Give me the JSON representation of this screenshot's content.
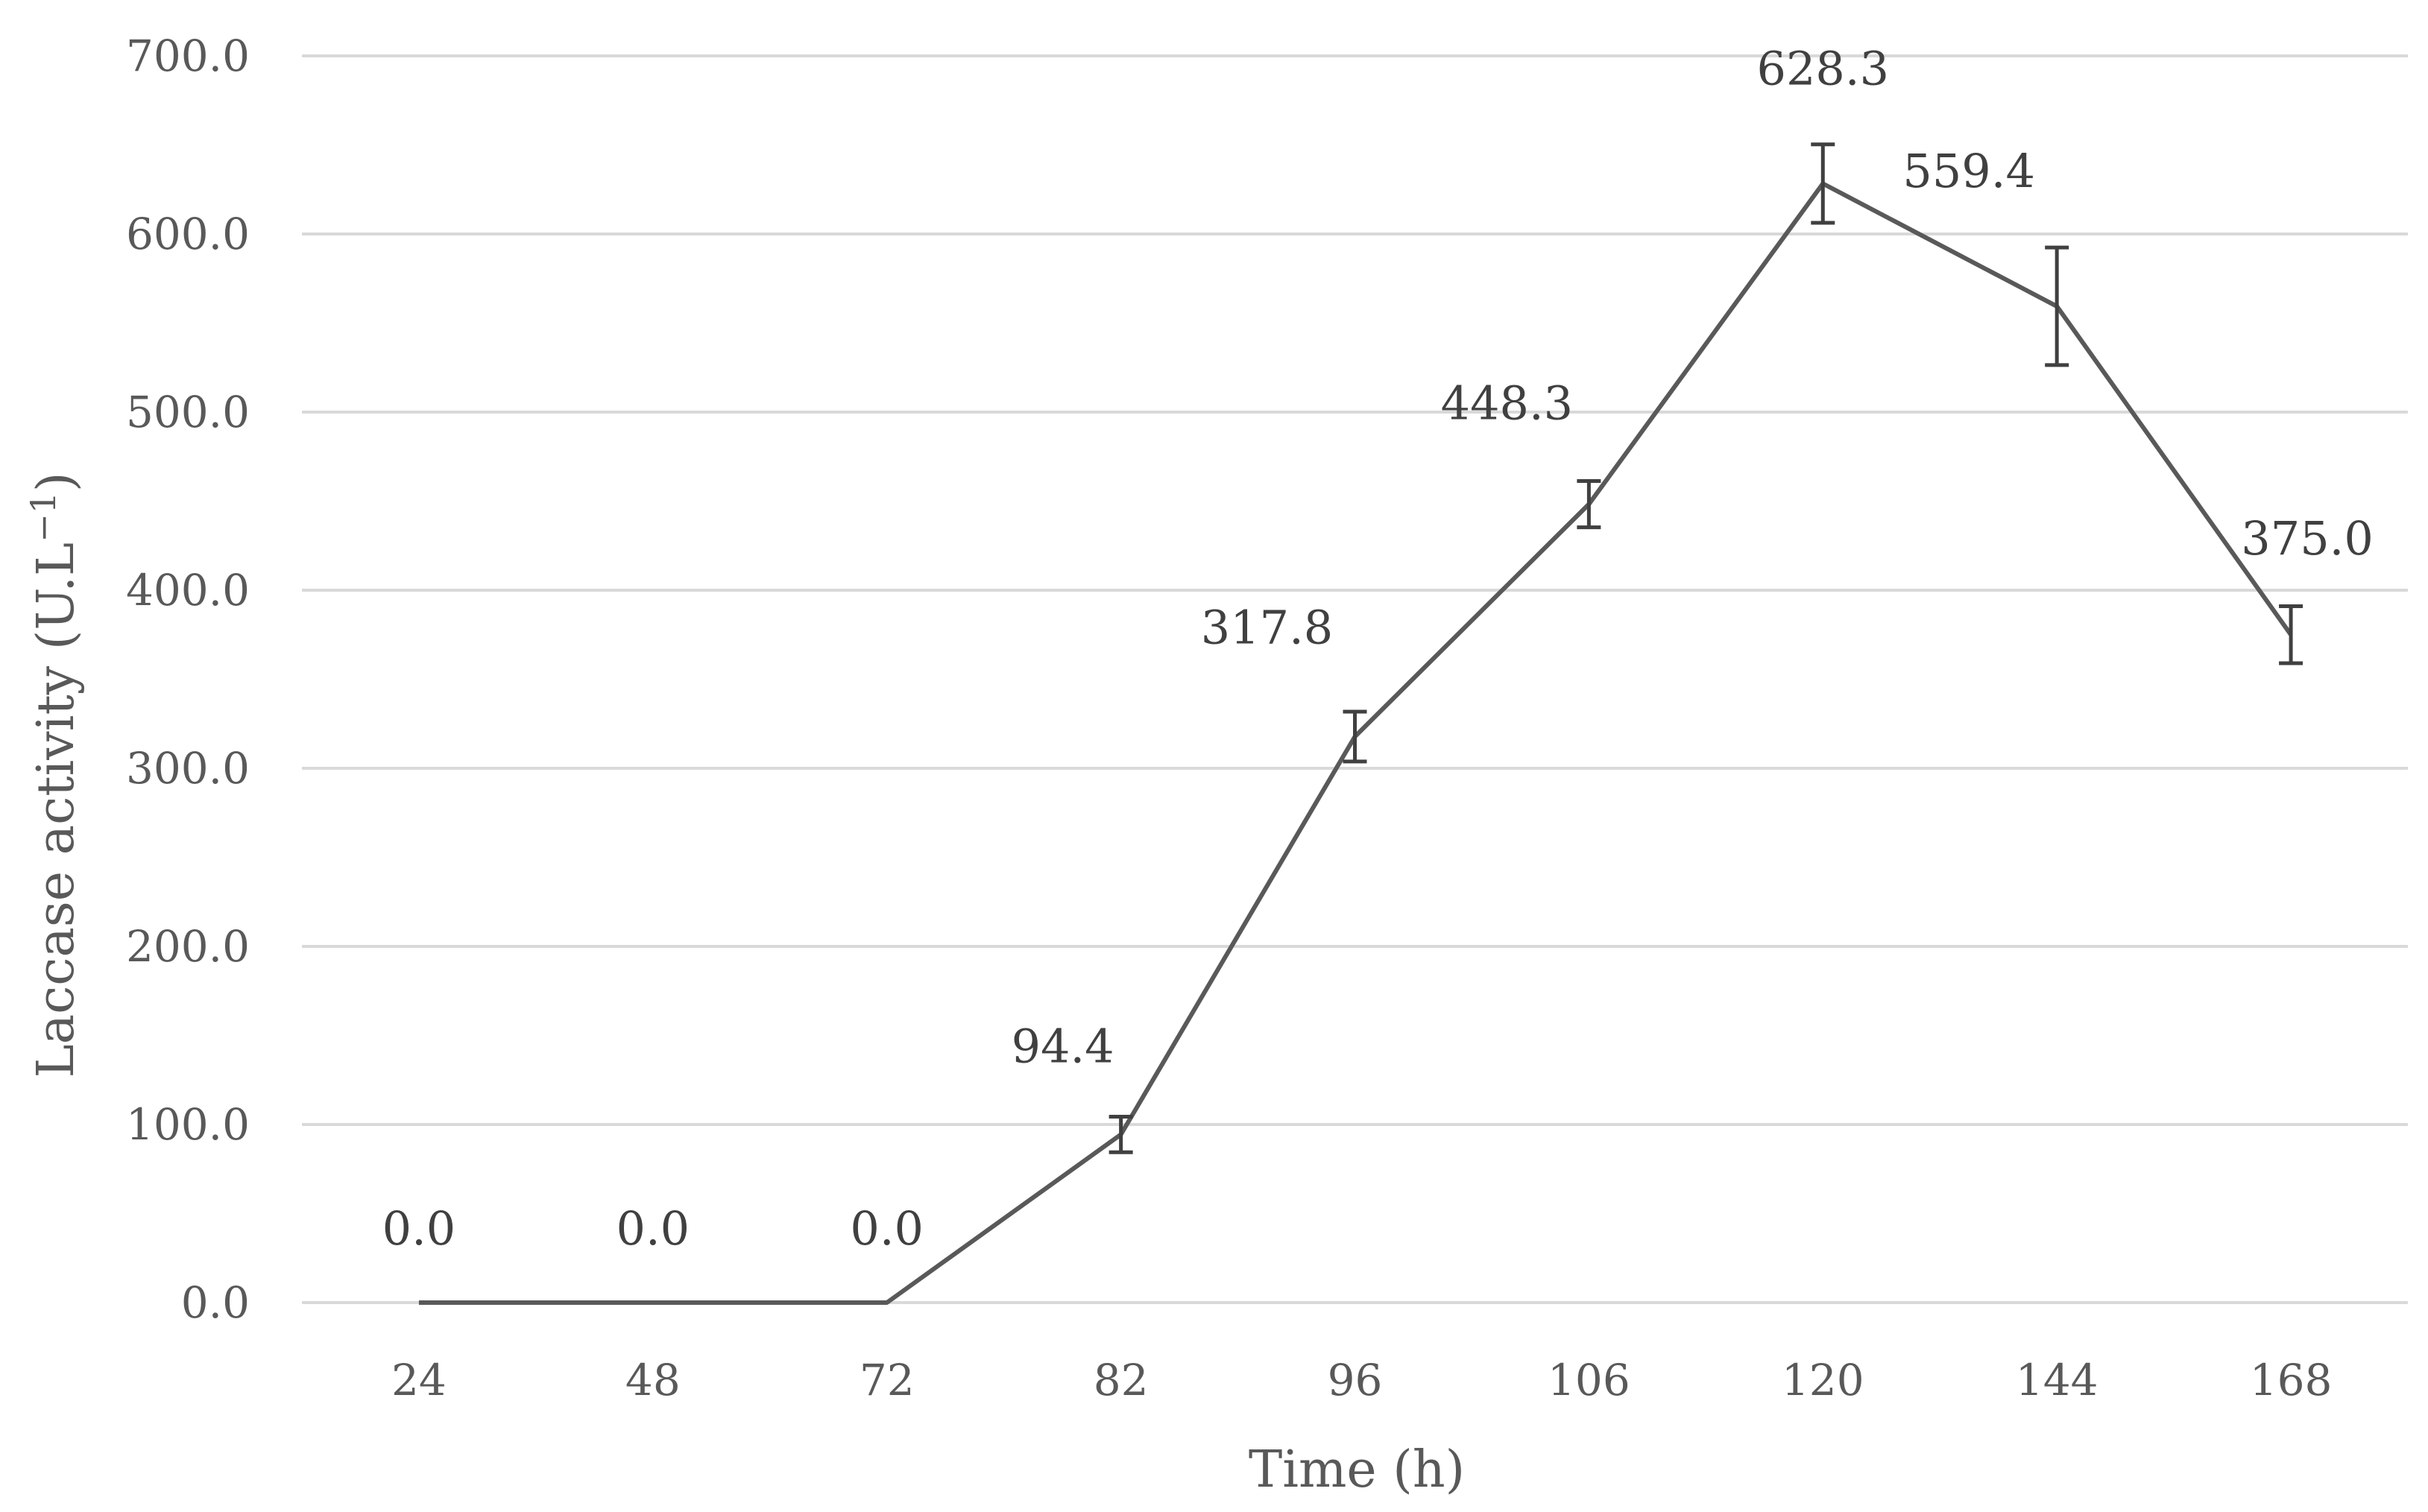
{
  "chart_data": {
    "type": "line",
    "title": "",
    "xlabel": "Time (h)",
    "ylabel": "Laccase activity (U.L",
    "ylabel_sup": "−1",
    "ylabel_close": ")",
    "categories": [
      "24",
      "48",
      "72",
      "82",
      "96",
      "106",
      "120",
      "144",
      "168"
    ],
    "values": [
      0.0,
      0.0,
      0.0,
      94.4,
      317.8,
      448.3,
      628.3,
      559.4,
      375.0
    ],
    "data_labels": [
      "0.0",
      "0.0",
      "0.0",
      "94.4",
      "317.8",
      "448.3",
      "628.3",
      "559.4",
      "375.0"
    ],
    "error": [
      0,
      0,
      0,
      10,
      14,
      13,
      22,
      33,
      16
    ],
    "ylim": [
      0,
      700
    ],
    "yticks": [
      0,
      100,
      200,
      300,
      400,
      500,
      600,
      700
    ],
    "ytick_labels": [
      "0.0",
      "100.0",
      "200.0",
      "300.0",
      "400.0",
      "500.0",
      "600.0",
      "700.0"
    ],
    "grid": true,
    "legend": "none",
    "colors": {
      "line": "#595959",
      "grid": "#d9d9d9",
      "text": "#595959",
      "label": "#404040"
    }
  }
}
